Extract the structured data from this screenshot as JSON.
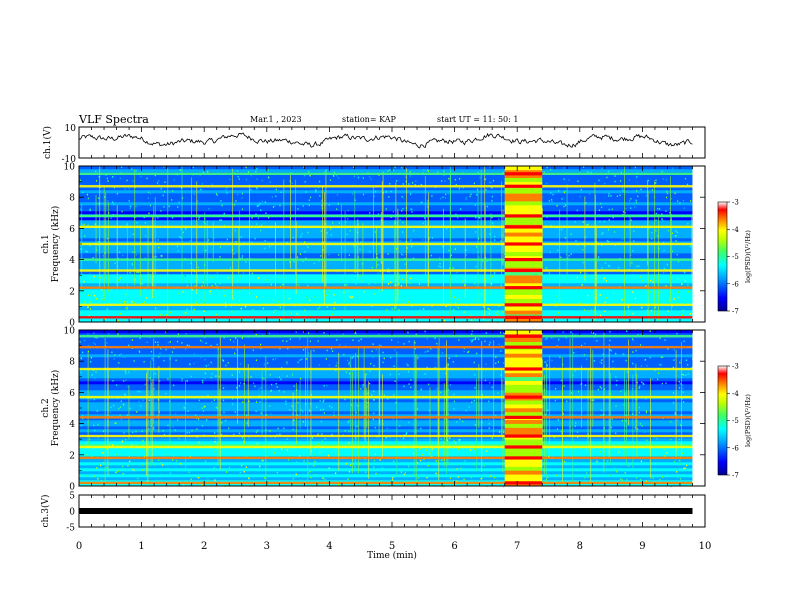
{
  "header": {
    "title": "VLF Spectra",
    "date": "Mar.1  , 2023",
    "station": "station= KAP",
    "start": "start  UT =   11: 50: 1"
  },
  "chart_data": [
    {
      "id": "ch1_waveform",
      "type": "line",
      "ylabel": "ch.1(V)",
      "ylim": [
        -10,
        10
      ],
      "yticks": [
        "10",
        "-10"
      ],
      "xlim": [
        0,
        10
      ],
      "series": [
        {
          "values": "noisy waveform oscillating between about -3 V and +6 V across 0-9.8 min"
        }
      ]
    },
    {
      "id": "ch1_spectrogram",
      "type": "heatmap",
      "ylabel": "ch.1\nFrequency (kHz)",
      "ylim": [
        0,
        10
      ],
      "yticks": [
        "0",
        "2",
        "4",
        "6",
        "8",
        "10"
      ],
      "xlim": [
        0,
        10
      ],
      "data_end_min": 9.8,
      "burst_interval_min": [
        6.8,
        7.4
      ],
      "colorbar": {
        "label": "log(PSD)(V²/Hz)",
        "range": [
          -7,
          -3
        ],
        "ticks": [
          "-3",
          "-4",
          "-5",
          "-6",
          "-7"
        ],
        "colors": [
          "#0000a0",
          "#0000ff",
          "#00a0ff",
          "#00ffff",
          "#40ff80",
          "#a0ff00",
          "#ffff00",
          "#ff8000",
          "#ff0000",
          "#e00000",
          "#ffffff"
        ]
      },
      "bands_khz": [
        {
          "f": 0.3,
          "level": "red"
        },
        {
          "f": 1.1,
          "level": "yellow"
        },
        {
          "f": 2.2,
          "level": "orange"
        },
        {
          "f": 3.3,
          "level": "yellow"
        },
        {
          "f": 4.0,
          "level": "green"
        },
        {
          "f": 5.0,
          "level": "yellow"
        },
        {
          "f": 6.1,
          "level": "yellow"
        },
        {
          "f": 6.8,
          "level": "green"
        },
        {
          "f": 8.7,
          "level": "yellow"
        },
        {
          "f": 9.5,
          "level": "green"
        }
      ]
    },
    {
      "id": "ch2_spectrogram",
      "type": "heatmap",
      "ylabel": "ch.2\nFrequency (kHz)",
      "ylim": [
        0,
        10
      ],
      "yticks": [
        "0",
        "2",
        "4",
        "6",
        "8",
        "10"
      ],
      "xlim": [
        0,
        10
      ],
      "data_end_min": 9.8,
      "burst_interval_min": [
        6.8,
        7.4
      ],
      "colorbar": {
        "label": "log(PSD)(V²/Hz)",
        "range": [
          -7,
          -3
        ],
        "ticks": [
          "-3",
          "-4",
          "-5",
          "-6",
          "-7"
        ]
      },
      "bands_khz": [
        {
          "f": 0.2,
          "level": "orange"
        },
        {
          "f": 1.8,
          "level": "orange"
        },
        {
          "f": 2.5,
          "level": "yellow"
        },
        {
          "f": 3.2,
          "level": "yellow"
        },
        {
          "f": 4.4,
          "level": "orange"
        },
        {
          "f": 5.7,
          "level": "yellow"
        },
        {
          "f": 7.5,
          "level": "yellow"
        },
        {
          "f": 8.9,
          "level": "orange"
        },
        {
          "f": 9.6,
          "level": "green"
        }
      ]
    },
    {
      "id": "ch3_waveform",
      "type": "line",
      "ylabel": "ch.3(V)",
      "ylim": [
        -5,
        5
      ],
      "yticks": [
        "5",
        "0",
        "-5"
      ],
      "xlim": [
        0,
        10
      ],
      "series": [
        {
          "values": "flat trace at 0 V from 0 to 9.8 min"
        }
      ]
    }
  ],
  "xaxis": {
    "label": "Time  (min)",
    "ticks": [
      "0",
      "1",
      "2",
      "3",
      "4",
      "5",
      "6",
      "7",
      "8",
      "9",
      "10"
    ]
  }
}
